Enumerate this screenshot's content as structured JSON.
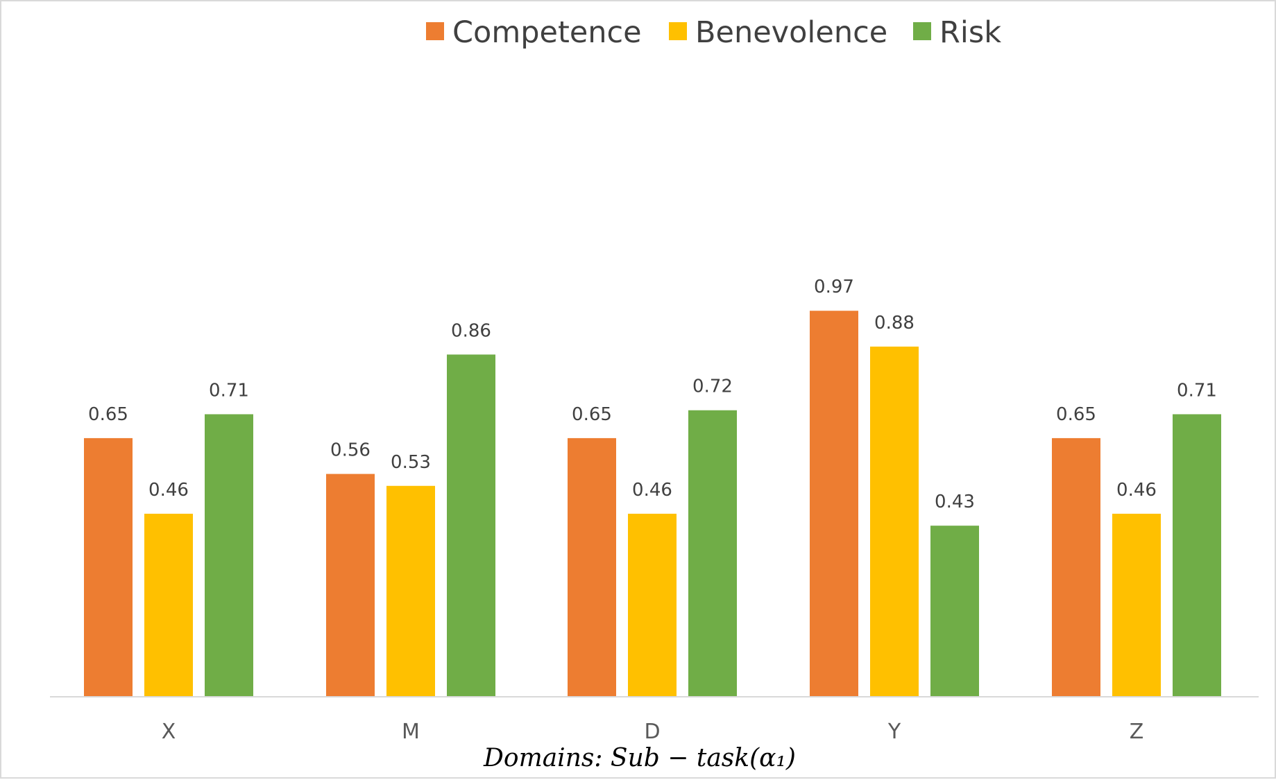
{
  "chart_data": {
    "type": "bar",
    "categories": [
      "X",
      "M",
      "D",
      "Y",
      "Z"
    ],
    "series": [
      {
        "name": "Competence",
        "color": "#ED7D31",
        "values": [
          0.65,
          0.56,
          0.65,
          0.97,
          0.65
        ]
      },
      {
        "name": "Benevolence",
        "color": "#FFC000",
        "values": [
          0.46,
          0.53,
          0.46,
          0.88,
          0.46
        ]
      },
      {
        "name": "Risk",
        "color": "#70AD47",
        "values": [
          0.71,
          0.86,
          0.72,
          0.43,
          0.71
        ]
      }
    ],
    "xlabel": "Domains: Sub − task(α₁)",
    "ylabel": "",
    "ylim": [
      0,
      1
    ],
    "grid": false,
    "legend": "top-center",
    "data_labels": true
  }
}
